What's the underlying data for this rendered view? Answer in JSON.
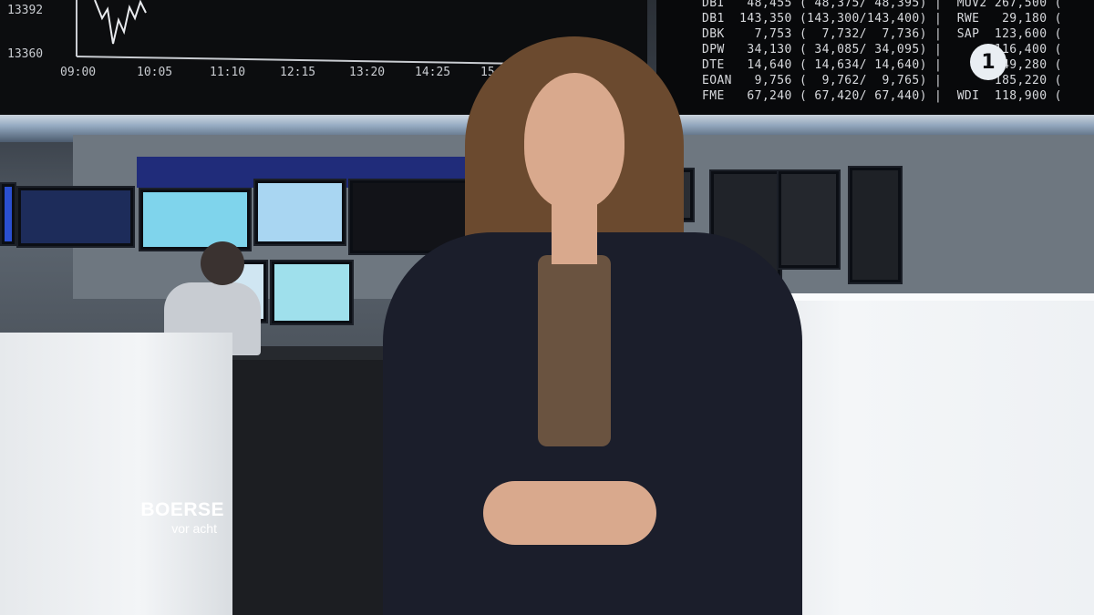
{
  "board": {
    "chart_y_labels": [
      "13392",
      "13360"
    ],
    "chart_x_labels": [
      "09:00",
      "10:05",
      "11:10",
      "12:15",
      "13:20",
      "14:25",
      "15:30"
    ],
    "quotes": [
      "DBI   48,455 ( 48,375/ 48,395) |  MUV2 267,500 (",
      "DB1  143,350 (143,300/143,400) |  RWE   29,180 (",
      "DBK    7,753 (  7,732/  7,736) |  SAP  123,600 (",
      "DPW   34,130 ( 34,085/ 34,095) |       116,400 (",
      "DTE   14,640 ( 14,634/ 14,640) |        49,280 (",
      "EOAN   9,756 (  9,762/  9,765) |       185,220 (",
      "FME   67,240 ( 67,420/ 67,440) |  WDI  118,900 ("
    ]
  },
  "logo": {
    "text": "1"
  },
  "branding": {
    "title": "BOERSE",
    "subtitle": "vor acht"
  },
  "colors": {
    "desk": "#f3f5f7",
    "board": "#0c0d0f",
    "jacket": "#1b1e2b",
    "brand_text": "#ffffff"
  }
}
